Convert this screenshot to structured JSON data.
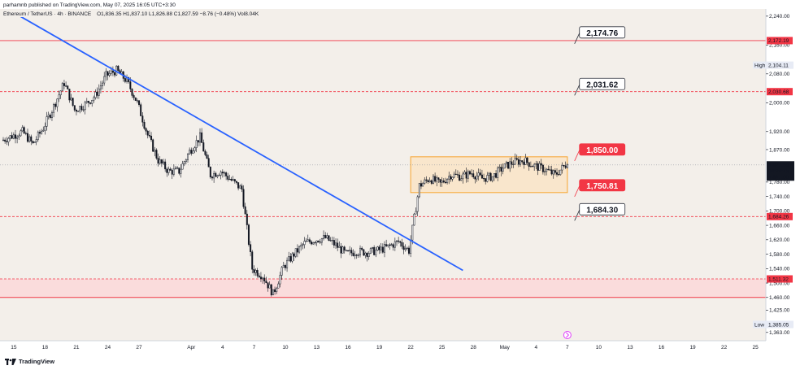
{
  "header": {
    "published": "parhamnb published on TradingView.com, May 07, 2025 16:05 UTC+3:30",
    "symbol_line": "Ethereum / TetherUS · 4h · BINANCE",
    "ohlc_line": "O1,836.35  H1,837.10  L1,826.88  C1,827.59  −8.76 (−0.48%)  Vol8.04K"
  },
  "footer": {
    "brand": "TradingView"
  },
  "colors": {
    "background": "#f3efea",
    "candle": "#131722",
    "trendline": "#2962ff",
    "resistance": "#f23645",
    "range_fill": "#fbe3c2",
    "range_border": "#f7a530",
    "zone_fill": "#fadcdc",
    "label_box": "#f23645"
  },
  "chart_data": {
    "type": "candlestick",
    "symbol": "ETHUSDT",
    "exchange": "BINANCE",
    "interval": "4h",
    "ylim": [
      1340,
      2260
    ],
    "yticks": [
      "2,240.00",
      "2,160.00",
      "2,080.00",
      "2,000.00",
      "1,920.00",
      "1,870.00",
      "1,780.00",
      "1,740.00",
      "1,700.00",
      "1,660.00",
      "1,620.00",
      "1,580.00",
      "1,540.00",
      "1,500.00",
      "1,460.00",
      "1,425.00",
      "1,363.00"
    ],
    "xtick_labels": [
      "15",
      "18",
      "21",
      "24",
      "27",
      "Apr",
      "4",
      "7",
      "10",
      "13",
      "16",
      "19",
      "22",
      "25",
      "28",
      "May",
      "4",
      "7",
      "10",
      "13",
      "16",
      "19",
      "22",
      "25"
    ],
    "x_range": [
      "2025-03-14",
      "2025-05-26"
    ],
    "ohlc_path": [
      [
        "2025-03-14",
        1895
      ],
      [
        "2025-03-16",
        1920
      ],
      [
        "2025-03-17",
        1885
      ],
      [
        "2025-03-18",
        1930
      ],
      [
        "2025-03-19",
        1990
      ],
      [
        "2025-03-20",
        2055
      ],
      [
        "2025-03-21",
        1980
      ],
      [
        "2025-03-22",
        1995
      ],
      [
        "2025-03-23",
        2020
      ],
      [
        "2025-03-24",
        2075
      ],
      [
        "2025-03-25",
        2090
      ],
      [
        "2025-03-26",
        2060
      ],
      [
        "2025-03-27",
        2000
      ],
      [
        "2025-03-28",
        1910
      ],
      [
        "2025-03-29",
        1840
      ],
      [
        "2025-03-30",
        1810
      ],
      [
        "2025-03-31",
        1810
      ],
      [
        "2025-04-01",
        1865
      ],
      [
        "2025-04-02",
        1905
      ],
      [
        "2025-04-03",
        1800
      ],
      [
        "2025-04-04",
        1810
      ],
      [
        "2025-04-05",
        1785
      ],
      [
        "2025-04-06",
        1760
      ],
      [
        "2025-04-07",
        1540
      ],
      [
        "2025-04-08",
        1520
      ],
      [
        "2025-04-09",
        1470
      ],
      [
        "2025-04-10",
        1545
      ],
      [
        "2025-04-11",
        1580
      ],
      [
        "2025-04-12",
        1610
      ],
      [
        "2025-04-13",
        1620
      ],
      [
        "2025-04-14",
        1625
      ],
      [
        "2025-04-15",
        1605
      ],
      [
        "2025-04-16",
        1580
      ],
      [
        "2025-04-17",
        1588
      ],
      [
        "2025-04-18",
        1585
      ],
      [
        "2025-04-19",
        1590
      ],
      [
        "2025-04-20",
        1600
      ],
      [
        "2025-04-21",
        1615
      ],
      [
        "2025-04-22",
        1590
      ],
      [
        "2025-04-23",
        1770
      ],
      [
        "2025-04-24",
        1790
      ],
      [
        "2025-04-25",
        1775
      ],
      [
        "2025-04-26",
        1800
      ],
      [
        "2025-04-27",
        1795
      ],
      [
        "2025-04-28",
        1805
      ],
      [
        "2025-04-29",
        1790
      ],
      [
        "2025-04-30",
        1795
      ],
      [
        "2025-05-01",
        1820
      ],
      [
        "2025-05-02",
        1835
      ],
      [
        "2025-05-03",
        1840
      ],
      [
        "2025-05-04",
        1825
      ],
      [
        "2025-05-05",
        1815
      ],
      [
        "2025-05-06",
        1800
      ],
      [
        "2025-05-07",
        1827.59
      ]
    ],
    "candle_range": [
      1385.05,
      2104.11
    ],
    "high": "2,104.11",
    "low": "1,385.05",
    "last_price": "1,827.59",
    "countdown": "03:24:45",
    "prev_level": "1,817.00",
    "price_labels": [
      "2,174.76",
      "2,031.62",
      "1,850.00",
      "1,750.81",
      "1,684.30"
    ],
    "axis_tags": [
      "2,172.19",
      "2,030.68",
      "1,684.26",
      "1,511.32"
    ],
    "levels": [
      {
        "value": 2172.19,
        "style": "solid"
      },
      {
        "value": 2030.68,
        "style": "dashed"
      },
      {
        "value": 1684.26,
        "style": "dashed"
      },
      {
        "value": 1511.32,
        "style": "dashed"
      }
    ],
    "zone": {
      "from": 1460,
      "to": 1511.32
    },
    "range_box": {
      "x_from": "2025-04-22",
      "x_to": "2025-05-07",
      "low": 1750.81,
      "high": 1850
    },
    "trendline": {
      "from": [
        "2025-03-15",
        2250
      ],
      "to": [
        "2025-04-27",
        1535
      ]
    }
  }
}
